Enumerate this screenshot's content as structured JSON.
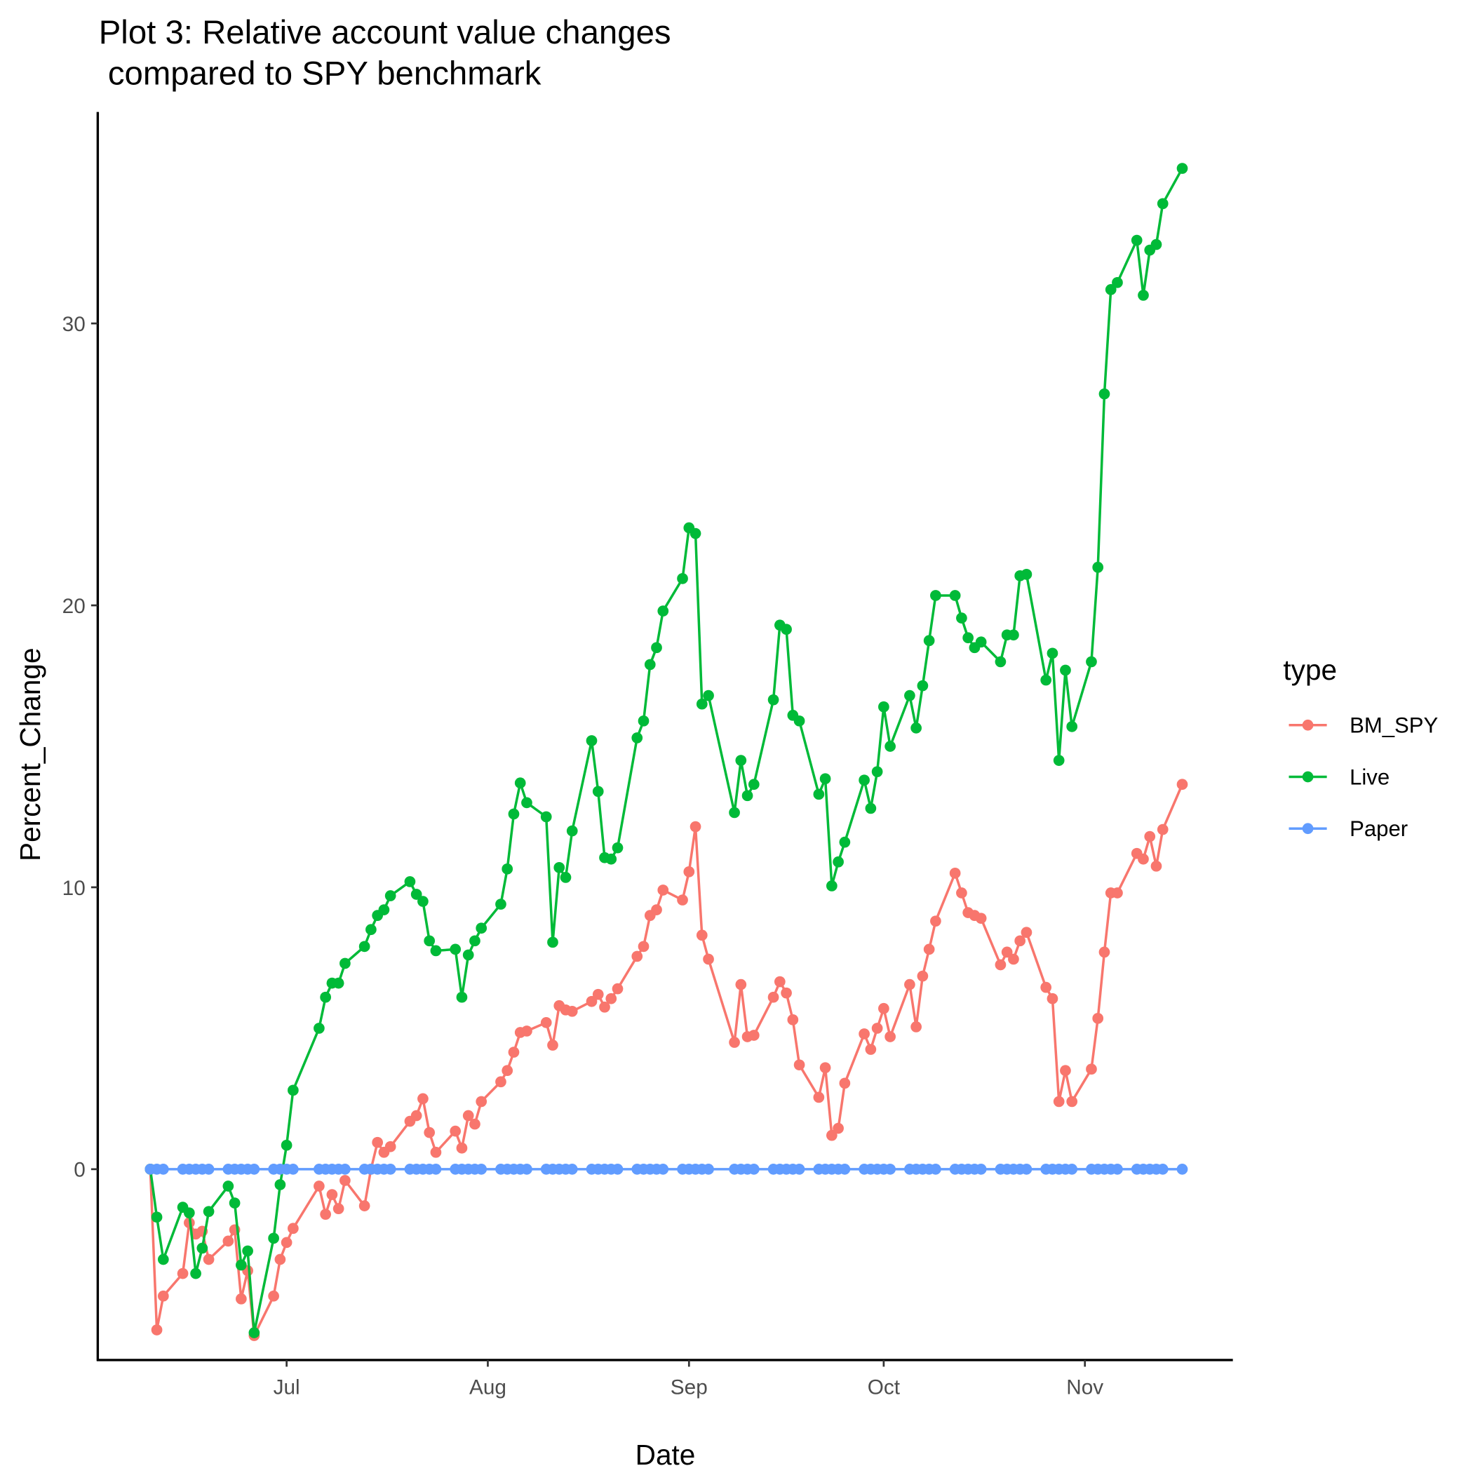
{
  "chart_data": {
    "type": "line",
    "title": [
      "Plot 3: Relative account value changes",
      " compared to SPY benchmark"
    ],
    "x_label": "Date",
    "y_label": "Percent_Change",
    "legend_title": "type",
    "legend_position": "right",
    "x": [
      161,
      162,
      163,
      166,
      167,
      168,
      169,
      170,
      173,
      174,
      175,
      176,
      177,
      180,
      181,
      182,
      183,
      187,
      188,
      189,
      190,
      191,
      194,
      195,
      196,
      197,
      198,
      201,
      202,
      203,
      204,
      205,
      208,
      209,
      210,
      211,
      212,
      215,
      216,
      217,
      218,
      219,
      222,
      223,
      224,
      225,
      226,
      229,
      230,
      231,
      232,
      233,
      236,
      237,
      238,
      239,
      240,
      243,
      244,
      245,
      246,
      247,
      251,
      252,
      253,
      254,
      257,
      258,
      259,
      260,
      261,
      264,
      265,
      266,
      267,
      268,
      271,
      272,
      273,
      274,
      275,
      278,
      279,
      280,
      281,
      282,
      285,
      286,
      287,
      288,
      289,
      292,
      293,
      294,
      295,
      296,
      299,
      300,
      301,
      302,
      303,
      306,
      307,
      308,
      309,
      310,
      313,
      314,
      315,
      316,
      317,
      320
    ],
    "series": [
      {
        "name": "BM_SPY",
        "color": "#F8766D",
        "values": [
          0,
          -5.7,
          -4.5,
          -3.7,
          -1.9,
          -2.3,
          -2.2,
          -3.2,
          -2.55,
          -2.15,
          -4.6,
          -3.6,
          -5.9,
          -4.5,
          -3.2,
          -2.6,
          -2.1,
          -0.6,
          -1.6,
          -0.9,
          -1.4,
          -0.4,
          -1.3,
          0,
          0.95,
          0.6,
          0.8,
          1.7,
          1.9,
          2.5,
          1.3,
          0.6,
          1.35,
          0.75,
          1.9,
          1.6,
          2.4,
          3.1,
          3.5,
          4.15,
          4.85,
          4.9,
          5.2,
          4.4,
          5.8,
          5.65,
          5.6,
          5.95,
          6.2,
          5.75,
          6.05,
          6.4,
          7.55,
          7.9,
          9.0,
          9.2,
          9.9,
          9.55,
          10.55,
          12.15,
          8.3,
          7.45,
          4.5,
          6.55,
          4.7,
          4.75,
          6.1,
          6.65,
          6.25,
          5.3,
          3.7,
          2.55,
          3.6,
          1.2,
          1.45,
          3.05,
          4.8,
          4.25,
          5.0,
          5.7,
          4.7,
          6.55,
          5.05,
          6.85,
          7.8,
          8.8,
          10.5,
          9.8,
          9.1,
          9.0,
          8.9,
          7.25,
          7.7,
          7.45,
          8.1,
          8.4,
          6.45,
          6.05,
          2.4,
          3.5,
          2.4,
          3.55,
          5.35,
          7.7,
          9.8,
          9.8,
          11.2,
          11.0,
          11.8,
          10.75,
          12.05,
          13.65
        ]
      },
      {
        "name": "Live",
        "color": "#00BA38",
        "values": [
          0,
          -1.7,
          -3.2,
          -1.35,
          -1.55,
          -3.7,
          -2.8,
          -1.5,
          -0.6,
          -1.2,
          -3.4,
          -2.9,
          -5.8,
          -2.45,
          -0.55,
          0.85,
          2.8,
          5.0,
          6.1,
          6.6,
          6.6,
          7.3,
          7.9,
          8.5,
          9.0,
          9.2,
          9.7,
          10.2,
          9.75,
          9.5,
          8.1,
          7.75,
          7.8,
          6.1,
          7.6,
          8.1,
          8.55,
          9.4,
          10.65,
          12.6,
          13.7,
          13.0,
          12.5,
          8.05,
          10.7,
          10.35,
          12.0,
          15.2,
          13.4,
          11.05,
          11.0,
          11.4,
          15.3,
          15.9,
          17.9,
          18.5,
          19.8,
          20.95,
          22.75,
          22.55,
          16.5,
          16.8,
          12.65,
          14.5,
          13.25,
          13.65,
          16.65,
          19.3,
          19.15,
          16.1,
          15.9,
          13.3,
          13.85,
          10.05,
          10.9,
          11.6,
          13.8,
          12.8,
          14.1,
          16.4,
          15.0,
          16.8,
          15.65,
          17.15,
          18.75,
          20.35,
          20.35,
          19.55,
          18.85,
          18.5,
          18.7,
          18.0,
          18.95,
          18.95,
          21.05,
          21.1,
          17.35,
          18.3,
          14.5,
          17.7,
          15.7,
          18.0,
          21.35,
          27.5,
          31.2,
          31.45,
          32.95,
          31.0,
          32.6,
          32.8,
          34.25,
          35.5
        ]
      },
      {
        "name": "Paper",
        "color": "#619CFF",
        "values": [
          0,
          0,
          0,
          0,
          0,
          0,
          0,
          0,
          0,
          0,
          0,
          0,
          0,
          0,
          0,
          0,
          0,
          0,
          0,
          0,
          0,
          0,
          0,
          0,
          0,
          0,
          0,
          0,
          0,
          0,
          0,
          0,
          0,
          0,
          0,
          0,
          0,
          0,
          0,
          0,
          0,
          0,
          0,
          0,
          0,
          0,
          0,
          0,
          0,
          0,
          0,
          0,
          0,
          0,
          0,
          0,
          0,
          0,
          0,
          0,
          0,
          0,
          0,
          0,
          0,
          0,
          0,
          0,
          0,
          0,
          0,
          0,
          0,
          0,
          0,
          0,
          0,
          0,
          0,
          0,
          0,
          0,
          0,
          0,
          0,
          0,
          0,
          0,
          0,
          0,
          0,
          0,
          0,
          0,
          0,
          0,
          0,
          0,
          0,
          0,
          0,
          0,
          0,
          0,
          0,
          0,
          0,
          0,
          0,
          0,
          0,
          0
        ]
      }
    ],
    "xlim": [
      152.9,
      327.8
    ],
    "xticks": [
      {
        "value": 182,
        "label": "Jul"
      },
      {
        "value": 213,
        "label": "Aug"
      },
      {
        "value": 244,
        "label": "Sep"
      },
      {
        "value": 274,
        "label": "Oct"
      },
      {
        "value": 305,
        "label": "Nov"
      }
    ],
    "ylim": [
      -6.77,
      37.5
    ],
    "yticks": [
      0,
      10,
      20,
      30
    ],
    "grid": false
  }
}
